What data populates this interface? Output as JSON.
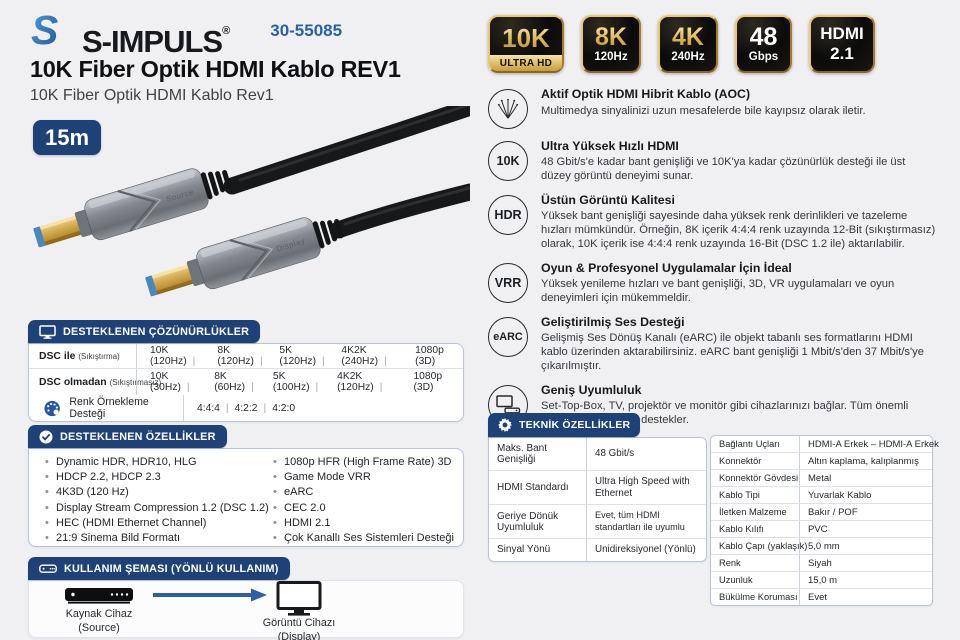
{
  "header": {
    "brand": "S-IMPULS",
    "reg": "®",
    "sku": "30-55085",
    "title": "10K Fiber Optik HDMI Kablo REV1",
    "subtitle": "10K Fiber Optik HDMI Kablo Rev1",
    "length_badge": "15m"
  },
  "badges": [
    {
      "variant": "ultra",
      "line1": "10K",
      "line2": "ULTRA HD"
    },
    {
      "variant": "gold",
      "line1": "8K",
      "line2": "120Hz"
    },
    {
      "variant": "gold",
      "line1": "4K",
      "line2": "240Hz"
    },
    {
      "variant": "plain",
      "line1": "48",
      "line2": "Gbps"
    },
    {
      "variant": "hdmi",
      "line1": "HDMI",
      "line2": "2.1"
    }
  ],
  "features": [
    {
      "icon_name": "fiber-icon",
      "title": "Aktif Optik HDMI Hibrit Kablo (AOC)",
      "text": "Multimedya sinyalinizi uzun mesafelerde bile kayıpsız olarak iletir."
    },
    {
      "icon_name": "10k-icon",
      "icon_label": "10K",
      "title": "Ultra Yüksek Hızlı HDMI",
      "text": "48 Gbit/s'e kadar bant genişliği ve 10K'ya kadar çözünürlük desteği ile üst düzey görüntü deneyimi sunar."
    },
    {
      "icon_name": "hdr-icon",
      "icon_label": "HDR",
      "title": "Üstün Görüntü Kalitesi",
      "text": "Yüksek bant genişliği sayesinde daha yüksek renk derinlikleri ve tazeleme hızları mümkündür. Örneğin, 8K içerik 4:4:4 renk uzayında 12-Bit (sıkıştırmasız) olarak, 10K içerik ise 4:4:4 renk uzayında 16-Bit (DSC 1.2 ile) aktarılabilir."
    },
    {
      "icon_name": "vrr-icon",
      "icon_label": "VRR",
      "title": "Oyun & Profesyonel Uygulamalar İçin İdeal",
      "text": "Yüksek yenileme hızları ve bant genişliği, 3D, VR uygulamaları ve oyun deneyimleri için mükemmeldir."
    },
    {
      "icon_name": "earc-icon",
      "icon_label": "eARC",
      "title": "Geliştirilmiş Ses Desteği",
      "text": "Gelişmiş Ses Dönüş Kanalı (eARC) ile objekt tabanlı ses formatlarını HDMI kablo üzerinden aktarabilirsiniz. eARC bant genişliği 1 Mbit/s'den 37 Mbit/s'ye çıkarılmıştır."
    },
    {
      "icon_name": "devices-icon",
      "title": "Geniş Uyumluluk",
      "text": "Set-Top-Box, TV, projektör ve monitör gibi cihazlarınızı bağlar. Tüm önemli HDMI standartlarını destekler."
    }
  ],
  "resolutions": {
    "header": "DESTEKLENEN ÇÖZÜNÜRLÜKLER",
    "rows": [
      {
        "label": "DSC ile",
        "note": "(Sıkıştırma)",
        "values": [
          "10K (120Hz)",
          "8K (120Hz)",
          "5K (120Hz)",
          "4K2K (240Hz)",
          "1080p (3D)"
        ]
      },
      {
        "label": "DSC olmadan",
        "note": "(Sıkıştırmasız)",
        "values": [
          "10K (30Hz)",
          "8K (60Hz)",
          "5K (100Hz)",
          "4K2K (120Hz)",
          "1080p (3D)"
        ]
      }
    ],
    "color_row": {
      "label": "Renk Örnekleme Desteği",
      "values": [
        "4:4:4",
        "4:2:2",
        "4:2:0"
      ]
    }
  },
  "supported_features": {
    "header": "DESTEKLENEN ÖZELLİKLER",
    "left": [
      "Dynamic HDR, HDR10, HLG",
      "HDCP 2.2, HDCP 2.3",
      "4K3D (120 Hz)",
      "Display Stream Compression 1.2 (DSC 1.2)",
      "HEC (HDMI Ethernet Channel)",
      "21:9 Sinema Bild Formatı"
    ],
    "right": [
      "1080p HFR (High Frame Rate) 3D",
      "Game Mode VRR",
      "eARC",
      "CEC 2.0",
      "HDMI 2.1",
      "Çok Kanallı Ses Sistemleri Desteği"
    ]
  },
  "usage": {
    "header": "KULLANIM ŞEMASI (YÖNLÜ KULLANIM)",
    "source_label": "Kaynak Cihaz",
    "source_sub": "(Source)",
    "display_label": "Görüntü Cihazı",
    "display_sub": "(Display)"
  },
  "specs": {
    "header": "TEKNİK ÖZELLİKLER",
    "left": [
      {
        "label": "Maks. Bant Genişliği",
        "value": "48 Gbit/s"
      },
      {
        "label": "HDMI Standardı",
        "value": "Ultra High Speed with Ethernet"
      },
      {
        "label": "Geriye Dönük Uyumluluk",
        "value": "Evet, tüm HDMI standartları ile uyumlu"
      },
      {
        "label": "Sinyal Yönü",
        "value": "Unidireksiyonel (Yönlü)"
      }
    ],
    "right": [
      {
        "label": "Bağlantı Uçları",
        "value": "HDMI-A Erkek – HDMI-A Erkek"
      },
      {
        "label": "Konnektör",
        "value": "Altın kaplama, kalıplanmış"
      },
      {
        "label": "Konnektör Gövdesi",
        "value": "Metal"
      },
      {
        "label": "Kablo Tipi",
        "value": "Yuvarlak Kablo"
      },
      {
        "label": "İletken Malzeme",
        "value": "Bakır / POF"
      },
      {
        "label": "Kablo Kılıfı",
        "value": "PVC"
      },
      {
        "label": "Kablo Çapı (yaklaşık)",
        "value": "5,0 mm"
      },
      {
        "label": "Renk",
        "value": "Siyah"
      },
      {
        "label": "Uzunluk",
        "value": "15,0 m"
      },
      {
        "label": "Bükülme Koruması",
        "value": "Evet"
      }
    ]
  },
  "product_image": {
    "connector_label_1": "Source",
    "connector_label_2": "Display"
  },
  "colors": {
    "navy": "#1e4278",
    "accent_blue": "#2b5fa7",
    "gold": "#d4aa4a",
    "page_bg": "#f0f0f2"
  }
}
